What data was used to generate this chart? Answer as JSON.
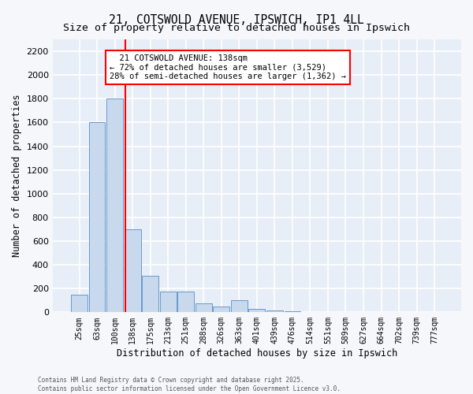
{
  "title": "21, COTSWOLD AVENUE, IPSWICH, IP1 4LL",
  "subtitle": "Size of property relative to detached houses in Ipswich",
  "xlabel": "Distribution of detached houses by size in Ipswich",
  "ylabel": "Number of detached properties",
  "bins": [
    "25sqm",
    "63sqm",
    "100sqm",
    "138sqm",
    "175sqm",
    "213sqm",
    "251sqm",
    "288sqm",
    "326sqm",
    "363sqm",
    "401sqm",
    "439sqm",
    "476sqm",
    "514sqm",
    "551sqm",
    "589sqm",
    "627sqm",
    "664sqm",
    "702sqm",
    "739sqm",
    "777sqm"
  ],
  "values": [
    150,
    1600,
    1800,
    700,
    310,
    175,
    175,
    75,
    50,
    100,
    30,
    15,
    10,
    5,
    2,
    1,
    0,
    0,
    0,
    0,
    0
  ],
  "bar_color": "#c8d9ee",
  "bar_edge_color": "#6699cc",
  "vline_x_index": 3,
  "vline_color": "red",
  "annotation_line1": "  21 COTSWOLD AVENUE: 138sqm",
  "annotation_line2": "← 72% of detached houses are smaller (3,529)",
  "annotation_line3": "28% of semi-detached houses are larger (1,362) →",
  "annotation_box_edgecolor": "red",
  "ylim": [
    0,
    2300
  ],
  "yticks": [
    0,
    200,
    400,
    600,
    800,
    1000,
    1200,
    1400,
    1600,
    1800,
    2000,
    2200
  ],
  "bg_color": "#e8eef8",
  "grid_color": "white",
  "footer_line1": "Contains HM Land Registry data © Crown copyright and database right 2025.",
  "footer_line2": "Contains public sector information licensed under the Open Government Licence v3.0.",
  "fig_bg": "#f5f7fa"
}
